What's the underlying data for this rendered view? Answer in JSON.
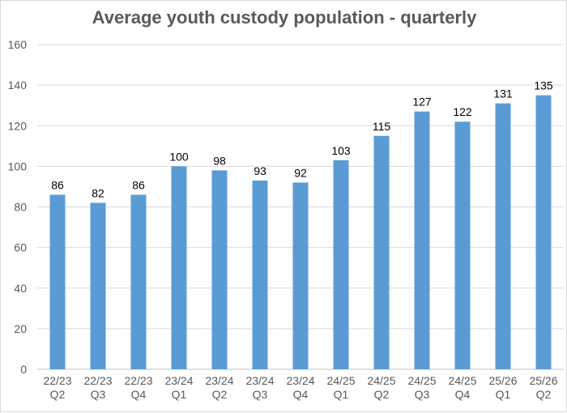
{
  "chart_data": {
    "type": "bar",
    "title": "Average youth custody population - quarterly",
    "categories": [
      [
        "22/23",
        "Q2"
      ],
      [
        "22/23",
        "Q3"
      ],
      [
        "22/23",
        "Q4"
      ],
      [
        "23/24",
        "Q1"
      ],
      [
        "23/24",
        "Q2"
      ],
      [
        "23/24",
        "Q3"
      ],
      [
        "23/24",
        "Q4"
      ],
      [
        "24/25",
        "Q1"
      ],
      [
        "24/25",
        "Q2"
      ],
      [
        "24/25",
        "Q3"
      ],
      [
        "24/25",
        "Q4"
      ],
      [
        "25/26",
        "Q1"
      ],
      [
        "25/26",
        "Q2"
      ]
    ],
    "values": [
      86,
      82,
      86,
      100,
      98,
      93,
      92,
      103,
      115,
      127,
      122,
      131,
      135
    ],
    "data_labels": [
      "86",
      "82",
      "86",
      "100",
      "98",
      "93",
      "92",
      "103",
      "115",
      "127",
      "122",
      "131",
      "135"
    ],
    "xlabel": "",
    "ylabel": "",
    "ylim": [
      0,
      160
    ],
    "yticks": [
      0,
      20,
      40,
      60,
      80,
      100,
      120,
      140,
      160
    ],
    "grid": true,
    "bar_color": "#5B9BD5",
    "gridline_color": "#D9D9D9"
  }
}
